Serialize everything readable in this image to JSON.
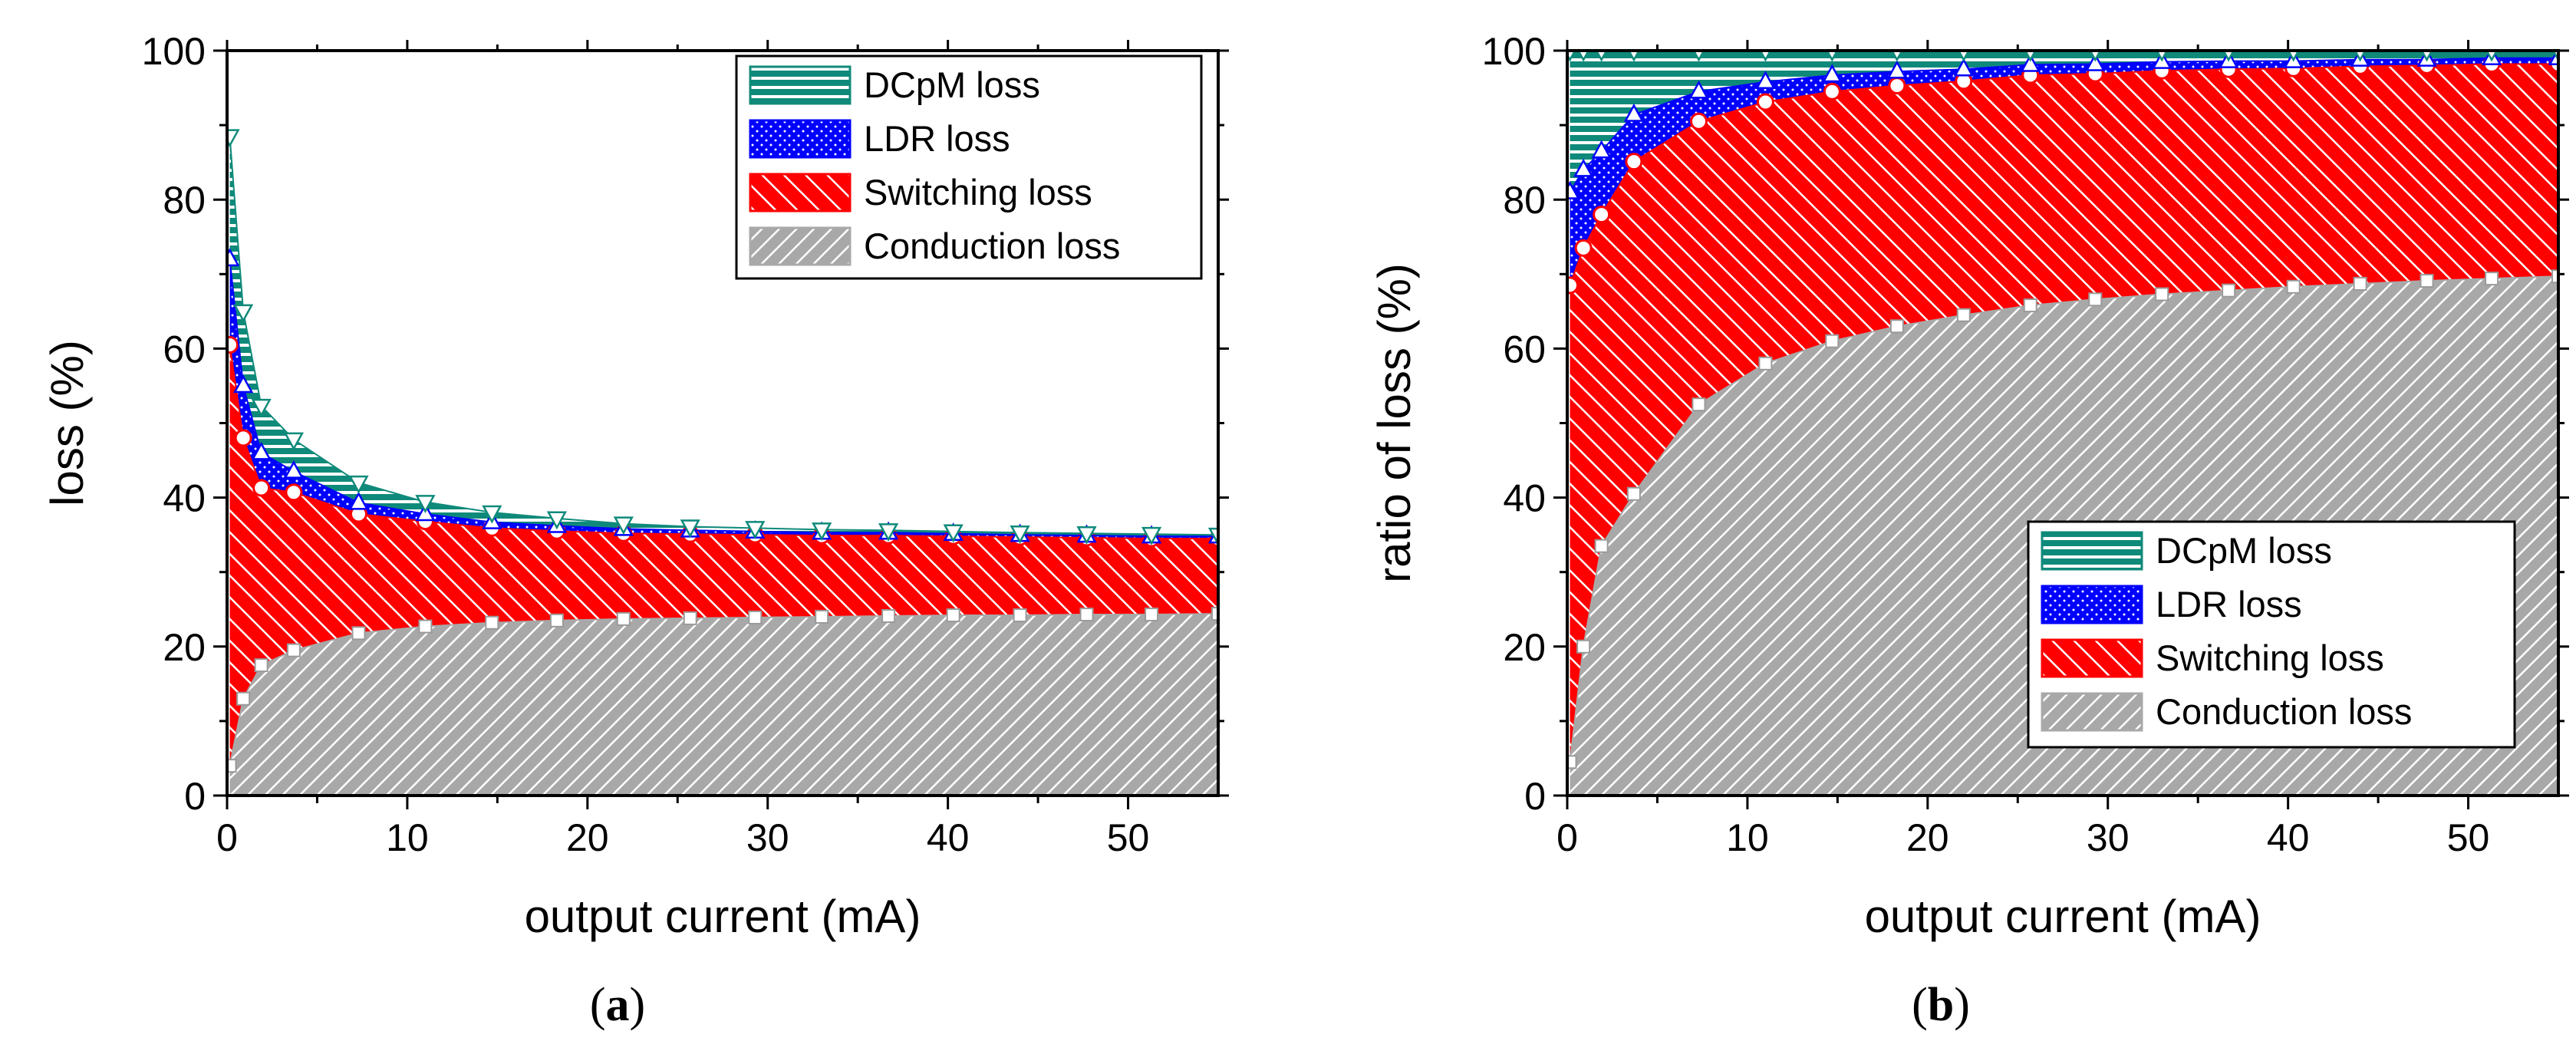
{
  "chart_data": [
    {
      "type": "area",
      "stacked": true,
      "panel": "a",
      "caption_left": "(",
      "caption_letter": "a",
      "caption_right": ")",
      "xlabel": "output current (mA)",
      "ylabel": "loss (%)",
      "xlim": [
        0,
        55
      ],
      "ylim": [
        0,
        100
      ],
      "xticks": [
        "0",
        "10",
        "20",
        "30",
        "40",
        "50"
      ],
      "yticks": [
        "0",
        "20",
        "40",
        "60",
        "80",
        "100"
      ],
      "legend_position": "top-right",
      "x": [
        0.15,
        0.9,
        1.9,
        3.7,
        7.3,
        11,
        14.7,
        18.3,
        22,
        25.7,
        29.3,
        33,
        36.7,
        40.3,
        44,
        47.7,
        51.3,
        55
      ],
      "series": [
        {
          "name": "Conduction loss",
          "color": "#a9a9a9",
          "pattern": "diag-gray",
          "values": [
            4,
            13,
            17.5,
            19.5,
            21.8,
            22.7,
            23.2,
            23.5,
            23.7,
            23.8,
            23.9,
            24,
            24.1,
            24.2,
            24.2,
            24.3,
            24.3,
            24.4
          ]
        },
        {
          "name": "Switching loss",
          "color": "#ff0000",
          "pattern": "diag-red",
          "values": [
            56.5,
            35,
            23.8,
            21.2,
            16,
            14.1,
            12.7,
            12,
            11.5,
            11.3,
            11.1,
            10.9,
            10.8,
            10.6,
            10.5,
            10.3,
            10.2,
            10.1
          ]
        },
        {
          "name": "LDR loss",
          "color": "#0000ff",
          "pattern": "dots-blue",
          "values": [
            11.5,
            7,
            4.7,
            2.8,
            1.5,
            1,
            0.8,
            0.7,
            0.6,
            0.5,
            0.45,
            0.4,
            0.4,
            0.35,
            0.3,
            0.3,
            0.3,
            0.3
          ]
        },
        {
          "name": "DCpM loss",
          "color": "#0f8a7a",
          "pattern": "hlines-teal",
          "values": [
            16.5,
            10,
            6.3,
            4.3,
            2.7,
            1.6,
            1.3,
            1,
            0.7,
            0.5,
            0.45,
            0.4,
            0.3,
            0.3,
            0.3,
            0.3,
            0.3,
            0.2
          ]
        }
      ]
    },
    {
      "type": "area",
      "stacked": true,
      "panel": "b",
      "caption_left": "(",
      "caption_letter": "b",
      "caption_right": ")",
      "xlabel": "output current (mA)",
      "ylabel": "ratio of loss (%)",
      "xlim": [
        0,
        55
      ],
      "ylim": [
        0,
        100
      ],
      "xticks": [
        "0",
        "10",
        "20",
        "30",
        "40",
        "50"
      ],
      "yticks": [
        "0",
        "20",
        "40",
        "60",
        "80",
        "100"
      ],
      "legend_position": "bottom-right",
      "x": [
        0.15,
        0.9,
        1.9,
        3.7,
        7.3,
        11,
        14.7,
        18.3,
        22,
        25.7,
        29.3,
        33,
        36.7,
        40.3,
        44,
        47.7,
        51.3,
        55
      ],
      "series": [
        {
          "name": "Conduction loss",
          "color": "#a9a9a9",
          "pattern": "diag-gray",
          "values": [
            4.5,
            20,
            33.5,
            40.5,
            52.5,
            58,
            61,
            63,
            64.5,
            65.8,
            66.6,
            67.3,
            67.8,
            68.3,
            68.7,
            69.1,
            69.4,
            69.7
          ]
        },
        {
          "name": "Switching loss",
          "color": "#ff0000",
          "pattern": "diag-red",
          "values": [
            64,
            53.5,
            44.5,
            44.6,
            38,
            35.1,
            33.5,
            32.3,
            31.4,
            30.9,
            30.3,
            30,
            29.7,
            29.3,
            29.2,
            28.9,
            28.8,
            28.5
          ]
        },
        {
          "name": "LDR loss",
          "color": "#0000ff",
          "pattern": "dots-blue",
          "values": [
            12.5,
            10.5,
            8.5,
            6.3,
            4,
            2.7,
            2.2,
            1.9,
            1.6,
            1.4,
            1.3,
            1.2,
            1.1,
            1,
            0.9,
            0.8,
            0.8,
            0.8
          ]
        },
        {
          "name": "DCpM loss",
          "color": "#0f8a7a",
          "pattern": "hlines-teal",
          "values": [
            19,
            16,
            13.5,
            8.6,
            5.5,
            4.2,
            3.3,
            2.8,
            2.5,
            1.9,
            1.8,
            1.5,
            1.4,
            1.4,
            1.2,
            1.2,
            1,
            1
          ]
        }
      ]
    }
  ]
}
